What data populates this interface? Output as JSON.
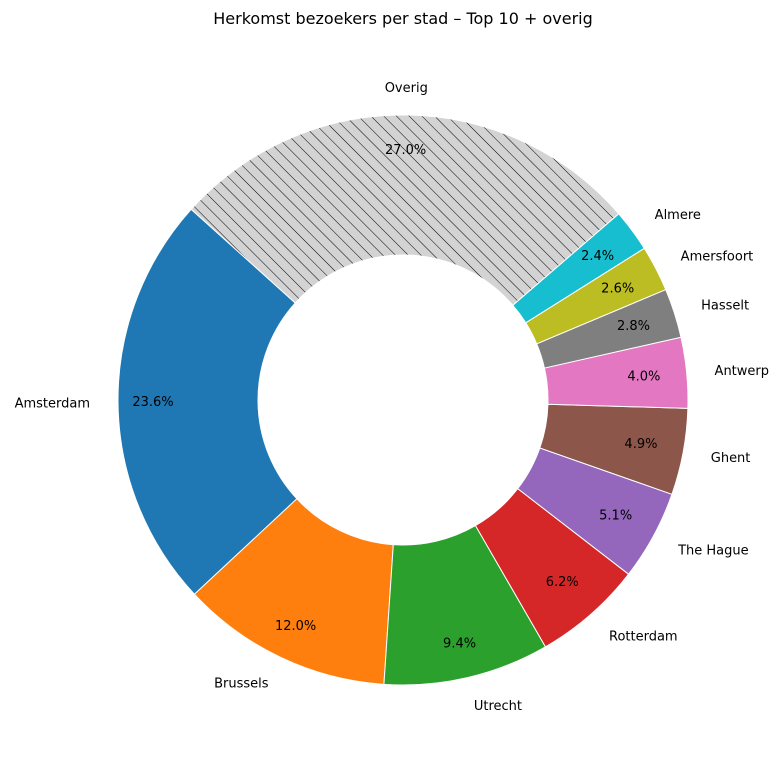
{
  "chart_data": {
    "type": "pie",
    "title": "Herkomst bezoekers per stad – Top 10 + overig",
    "donut": true,
    "slices": [
      {
        "label": "Amsterdam",
        "value": 23.6,
        "pct_label": "23.6%",
        "color": "#1f77b4"
      },
      {
        "label": "Brussels",
        "value": 12.0,
        "pct_label": "12.0%",
        "color": "#ff7f0e"
      },
      {
        "label": "Utrecht",
        "value": 9.4,
        "pct_label": "9.4%",
        "color": "#2ca02c"
      },
      {
        "label": "Rotterdam",
        "value": 6.2,
        "pct_label": "6.2%",
        "color": "#d62728"
      },
      {
        "label": "The Hague",
        "value": 5.1,
        "pct_label": "5.1%",
        "color": "#9467bd"
      },
      {
        "label": "Ghent",
        "value": 4.9,
        "pct_label": "4.9%",
        "color": "#8c564b"
      },
      {
        "label": "Antwerp",
        "value": 4.0,
        "pct_label": "4.0%",
        "color": "#e377c2"
      },
      {
        "label": "Hasselt",
        "value": 2.8,
        "pct_label": "2.8%",
        "color": "#7f7f7f"
      },
      {
        "label": "Amersfoort",
        "value": 2.6,
        "pct_label": "2.6%",
        "color": "#bcbd22"
      },
      {
        "label": "Almere",
        "value": 2.4,
        "pct_label": "2.4%",
        "color": "#17becf"
      },
      {
        "label": "Overig",
        "value": 27.0,
        "pct_label": "27.0%",
        "color": "#d3d3d3",
        "hatched": true
      }
    ]
  }
}
